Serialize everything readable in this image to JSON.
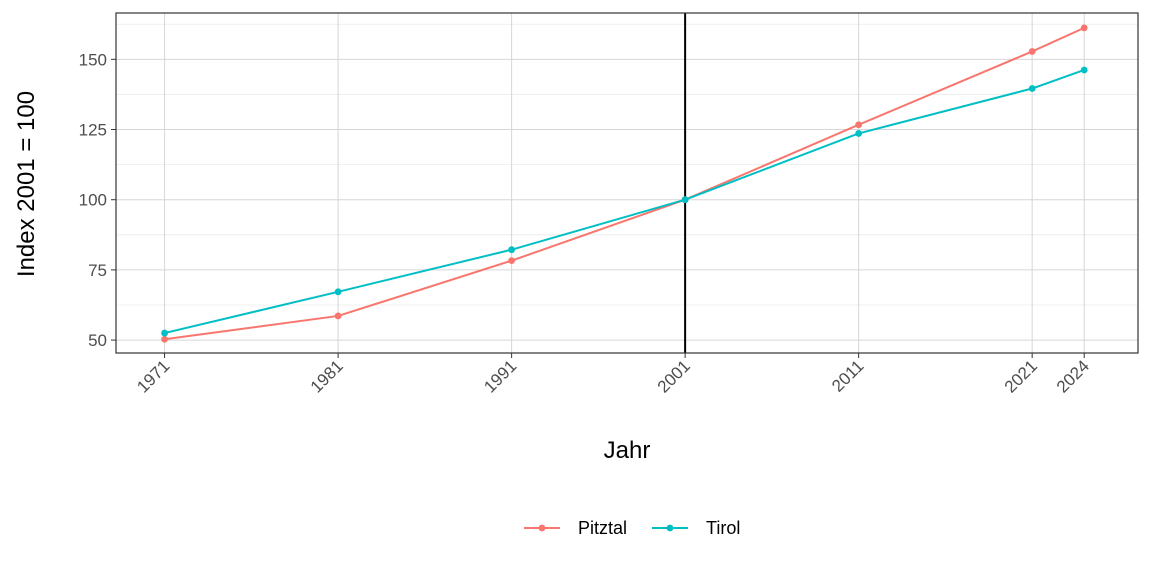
{
  "chart_data": {
    "type": "line",
    "title": "",
    "xlabel": "Jahr",
    "ylabel": "Index 2001 = 100",
    "x": [
      1971,
      1981,
      1991,
      2001,
      2011,
      2021,
      2024
    ],
    "x_tick_labels": [
      "1971",
      "1981",
      "1991",
      "2001",
      "2011",
      "2021",
      "2024"
    ],
    "y_ticks": [
      50,
      75,
      100,
      125,
      150
    ],
    "y_tick_labels": [
      "50",
      "75",
      "100",
      "125",
      "150"
    ],
    "xlim": [
      1968.2,
      2027.1
    ],
    "ylim": [
      45.4,
      166.5
    ],
    "grid": true,
    "reference_line": {
      "x": 2001,
      "color": "#000000"
    },
    "legend_position": "bottom",
    "series": [
      {
        "name": "Pitztal",
        "color": "#F8766D",
        "values": [
          50.3,
          58.6,
          78.3,
          100,
          126.7,
          152.8,
          161.2
        ]
      },
      {
        "name": "Tirol",
        "color": "#00BFC4",
        "values": [
          52.5,
          67.2,
          82.2,
          100,
          123.6,
          139.6,
          146.2
        ]
      }
    ]
  }
}
